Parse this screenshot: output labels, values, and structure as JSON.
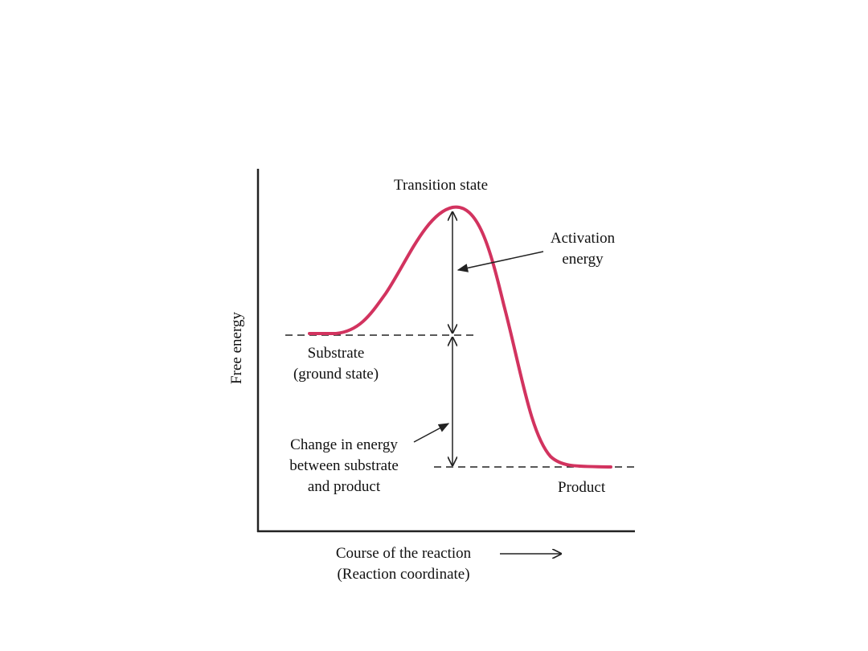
{
  "diagram": {
    "y_axis_label": "Free energy",
    "x_axis_label_line1": "Course of the reaction",
    "x_axis_label_line2": "(Reaction coordinate)",
    "transition_state": "Transition state",
    "activation_energy_line1": "Activation",
    "activation_energy_line2": "energy",
    "substrate_line1": "Substrate",
    "substrate_line2": "(ground state)",
    "change_line1": "Change in energy",
    "change_line2": "between substrate",
    "change_line3": "and product",
    "product": "Product",
    "curve_color": "#d2335f"
  }
}
